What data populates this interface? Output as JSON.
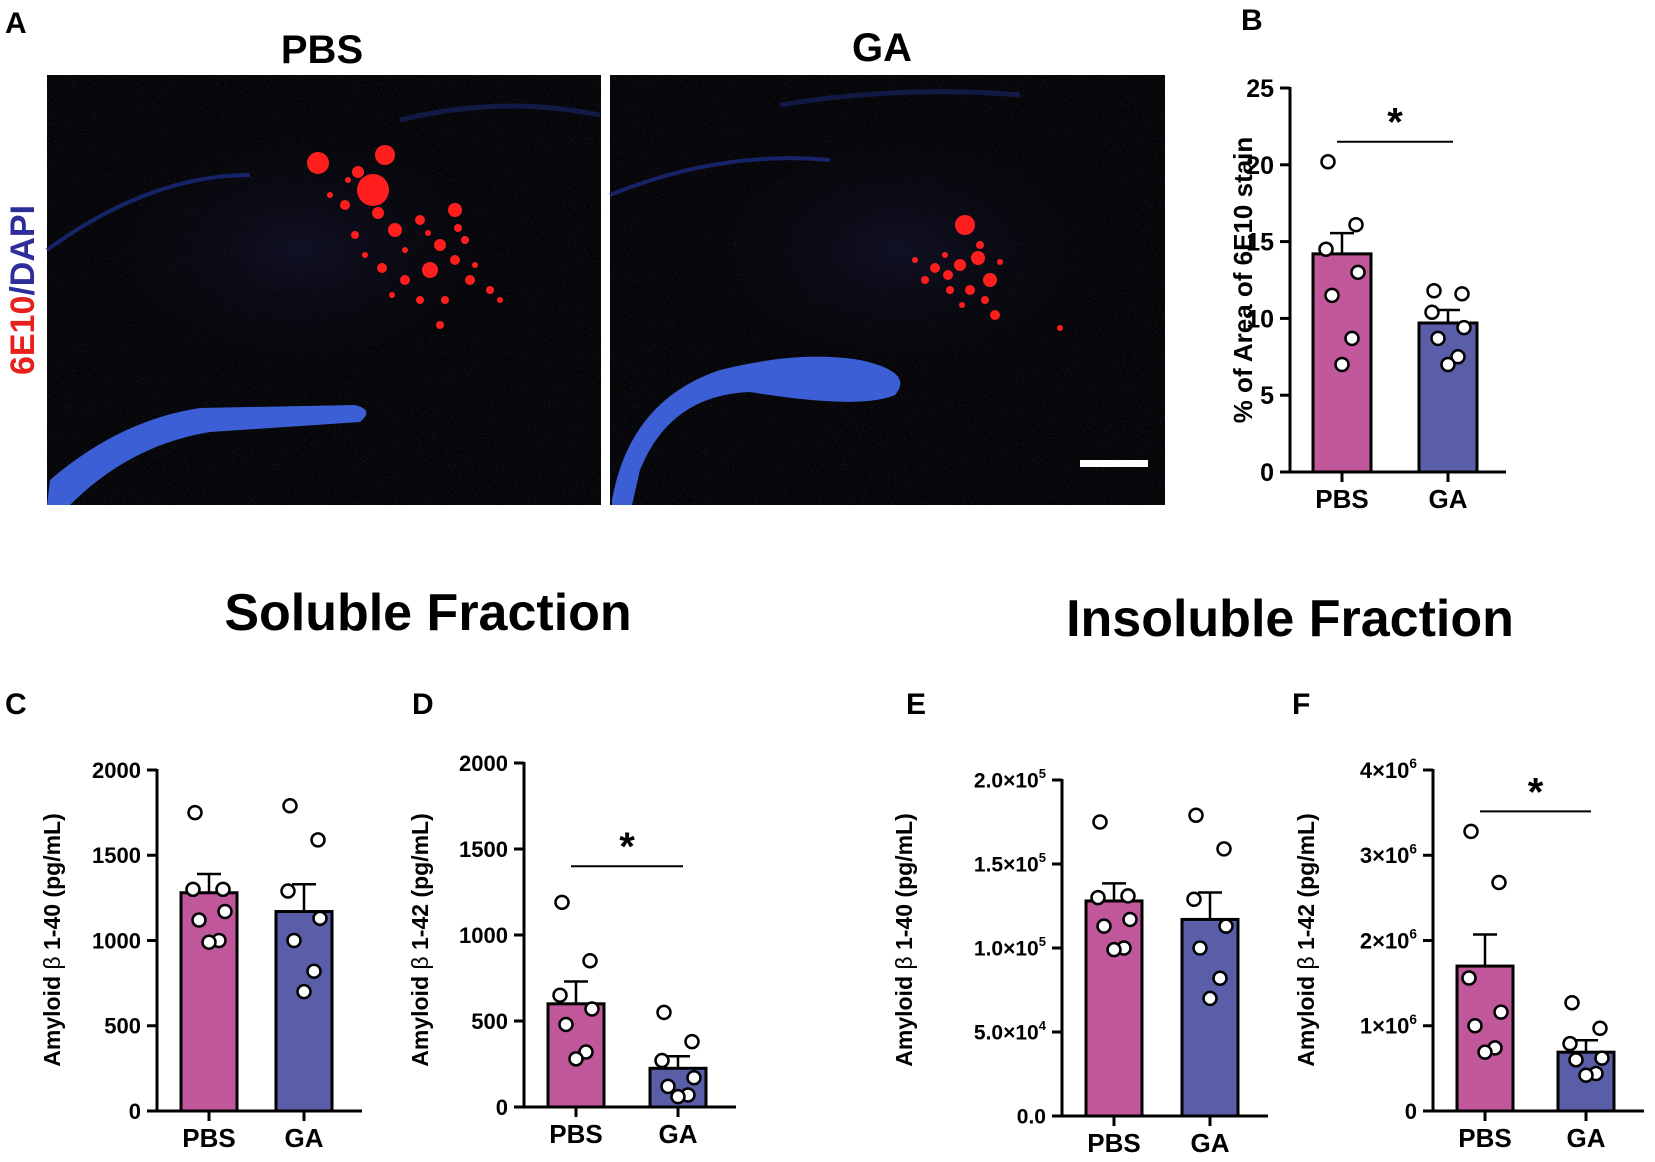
{
  "panel_a": {
    "letter": "A",
    "left_title": "PBS",
    "right_title": "GA",
    "stain_red": "6E10",
    "stain_sep": "/",
    "stain_blue": "DAPI",
    "colors": {
      "red": "#e8201c",
      "blue": "#2e2e9a",
      "background": "#060608",
      "dapi": "#3d5fd6"
    }
  },
  "sections": {
    "soluble": "Soluble Fraction",
    "insoluble": "Insoluble Fraction"
  },
  "colors": {
    "pbs": "#c0579b",
    "ga": "#5a5ea8"
  },
  "chart_data": [
    {
      "panel": "B",
      "type": "bar",
      "categories": [
        "PBS",
        "GA"
      ],
      "values": [
        14.2,
        9.7
      ],
      "sem": [
        1.35,
        0.85
      ],
      "points": [
        [
          20.2,
          16.1,
          14.5,
          13.0,
          11.5,
          8.7,
          7.0
        ],
        [
          11.8,
          11.6,
          10.4,
          9.4,
          8.7,
          7.5,
          7.0
        ]
      ],
      "ylabel": "% of Area of 6E10 stain",
      "ylabel_greek": "",
      "ylabel_suffix": "",
      "ylim": [
        0,
        25
      ],
      "yticks": [
        0,
        5,
        10,
        15,
        20,
        25
      ],
      "yticklabels": [
        "0",
        "5",
        "10",
        "15",
        "20",
        "25"
      ],
      "yticksup": [
        "",
        "",
        "",
        "",
        "",
        ""
      ],
      "significance": "*"
    },
    {
      "panel": "C",
      "type": "bar",
      "categories": [
        "PBS",
        "GA"
      ],
      "values": [
        1280,
        1170
      ],
      "sem": [
        110,
        160
      ],
      "points": [
        [
          1750,
          1300,
          1300,
          1170,
          1120,
          1000,
          990
        ],
        [
          1790,
          1590,
          1290,
          1130,
          1000,
          820,
          700
        ]
      ],
      "ylabel": "Amyloid ",
      "ylabel_greek": "β",
      "ylabel_suffix": " 1-40 (pg/mL)",
      "ylim": [
        0,
        2000
      ],
      "yticks": [
        0,
        500,
        1000,
        1500,
        2000
      ],
      "yticklabels": [
        "0",
        "500",
        "1000",
        "1500",
        "2000"
      ],
      "yticksup": [
        "",
        "",
        "",
        "",
        ""
      ],
      "significance": ""
    },
    {
      "panel": "D",
      "type": "bar",
      "categories": [
        "PBS",
        "GA"
      ],
      "values": [
        600,
        225
      ],
      "sem": [
        130,
        70
      ],
      "points": [
        [
          1190,
          850,
          650,
          570,
          480,
          320,
          280
        ],
        [
          550,
          380,
          270,
          170,
          120,
          70,
          60
        ]
      ],
      "ylabel": "Amyloid ",
      "ylabel_greek": "β",
      "ylabel_suffix": " 1-42 (pg/mL)",
      "ylim": [
        0,
        2000
      ],
      "yticks": [
        0,
        500,
        1000,
        1500,
        2000
      ],
      "yticklabels": [
        "0",
        "500",
        "1000",
        "1500",
        "2000"
      ],
      "yticksup": [
        "",
        "",
        "",
        "",
        ""
      ],
      "significance": "*"
    },
    {
      "panel": "E",
      "type": "bar",
      "categories": [
        "PBS",
        "GA"
      ],
      "values": [
        128000,
        117000
      ],
      "sem": [
        10500,
        16000
      ],
      "points": [
        [
          175000,
          131000,
          130000,
          117000,
          113000,
          100000,
          99000
        ],
        [
          179000,
          159000,
          129000,
          113000,
          100000,
          82000,
          70000
        ]
      ],
      "ylabel": "Amyloid ",
      "ylabel_greek": "β",
      "ylabel_suffix": " 1-40 (pg/mL)",
      "ylim": [
        0,
        200000
      ],
      "yticks": [
        0,
        50000,
        100000,
        150000,
        200000
      ],
      "yticklabels": [
        "0.0",
        "5.0×10",
        "1.0×10",
        "1.5×10",
        "2.0×10"
      ],
      "yticksup": [
        "",
        "4",
        "5",
        "5",
        "5"
      ],
      "significance": ""
    },
    {
      "panel": "F",
      "type": "bar",
      "categories": [
        "PBS",
        "GA"
      ],
      "values": [
        1700000,
        690000
      ],
      "sem": [
        370000,
        140000
      ],
      "points": [
        [
          3280000,
          2680000,
          1560000,
          1160000,
          1000000,
          740000,
          690000
        ],
        [
          1270000,
          970000,
          790000,
          620000,
          600000,
          440000,
          420000
        ]
      ],
      "ylabel": "Amyloid ",
      "ylabel_greek": "β",
      "ylabel_suffix": " 1-42 (pg/mL)",
      "ylim": [
        0,
        4000000
      ],
      "yticks": [
        0,
        1000000,
        2000000,
        3000000,
        4000000
      ],
      "yticklabels": [
        "0",
        "1×10",
        "2×10",
        "3×10",
        "4×10"
      ],
      "yticksup": [
        "",
        "6",
        "6",
        "6",
        "6"
      ],
      "significance": "*"
    }
  ]
}
